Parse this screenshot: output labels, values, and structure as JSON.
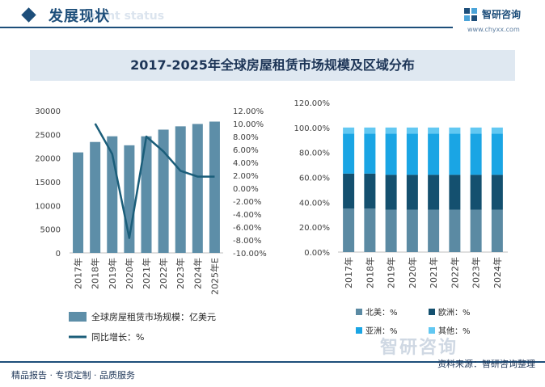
{
  "header": {
    "title": "发展现状",
    "subtitle": "ment status"
  },
  "logo": {
    "name": "智研咨询",
    "url": "www.chyxx.com"
  },
  "chart_title": "2017-2025年全球房屋租赁市场规模及区域分布",
  "chart_data": [
    {
      "type": "bar",
      "categories": [
        "2017年",
        "2018年",
        "2019年",
        "2020年",
        "2021年",
        "2022年",
        "2023年",
        "2024年",
        "2025年E"
      ],
      "series": [
        {
          "name": "全球房屋租赁市场规模：亿美元",
          "type": "bar",
          "axis": "left",
          "values": [
            21200,
            23400,
            24600,
            22700,
            24600,
            26000,
            26700,
            27200,
            27700
          ]
        },
        {
          "name": "同比增长：%",
          "type": "line",
          "axis": "right",
          "values": [
            null,
            10.0,
            5.3,
            -7.7,
            8.0,
            5.7,
            2.7,
            1.8,
            1.8
          ]
        }
      ],
      "y_left": {
        "ylim": [
          0,
          30000
        ],
        "ticks": [
          "0",
          "5000",
          "10000",
          "15000",
          "20000",
          "25000",
          "30000"
        ]
      },
      "y_right": {
        "ylim": [
          -10,
          12
        ],
        "ticks": [
          "-10.00%",
          "-8.00%",
          "-6.00%",
          "-4.00%",
          "-2.00%",
          "0.00%",
          "2.00%",
          "4.00%",
          "6.00%",
          "8.00%",
          "10.00%",
          "12.00%"
        ]
      },
      "colors": {
        "bar": "#5d8ea8",
        "line": "#1b5e7a"
      }
    },
    {
      "type": "bar",
      "stacked": true,
      "categories": [
        "2017年",
        "2018年",
        "2019年",
        "2020年",
        "2021年",
        "2022年",
        "2023年",
        "2024年"
      ],
      "series": [
        {
          "name": "北美：%",
          "values": [
            35,
            35,
            34,
            34,
            34,
            34,
            34,
            34
          ],
          "color": "#5b8aa3"
        },
        {
          "name": "欧洲：%",
          "values": [
            28,
            28,
            28,
            28,
            28,
            28,
            28,
            28
          ],
          "color": "#14506f"
        },
        {
          "name": "亚洲：%",
          "values": [
            32,
            32,
            33,
            33,
            33,
            33,
            33,
            33
          ],
          "color": "#1aa5e4"
        },
        {
          "name": "其他：%",
          "values": [
            5,
            5,
            5,
            5,
            5,
            5,
            5,
            5
          ],
          "color": "#62c8f2"
        }
      ],
      "ylim": [
        0,
        120
      ],
      "ticks": [
        "0.00%",
        "20.00%",
        "40.00%",
        "60.00%",
        "80.00%",
        "100.00%",
        "120.00%"
      ]
    }
  ],
  "footer": {
    "left": "精品报告 · 专项定制 · 品质服务",
    "right": "资料来源：智研咨询整理",
    "watermark": "智研咨询"
  }
}
